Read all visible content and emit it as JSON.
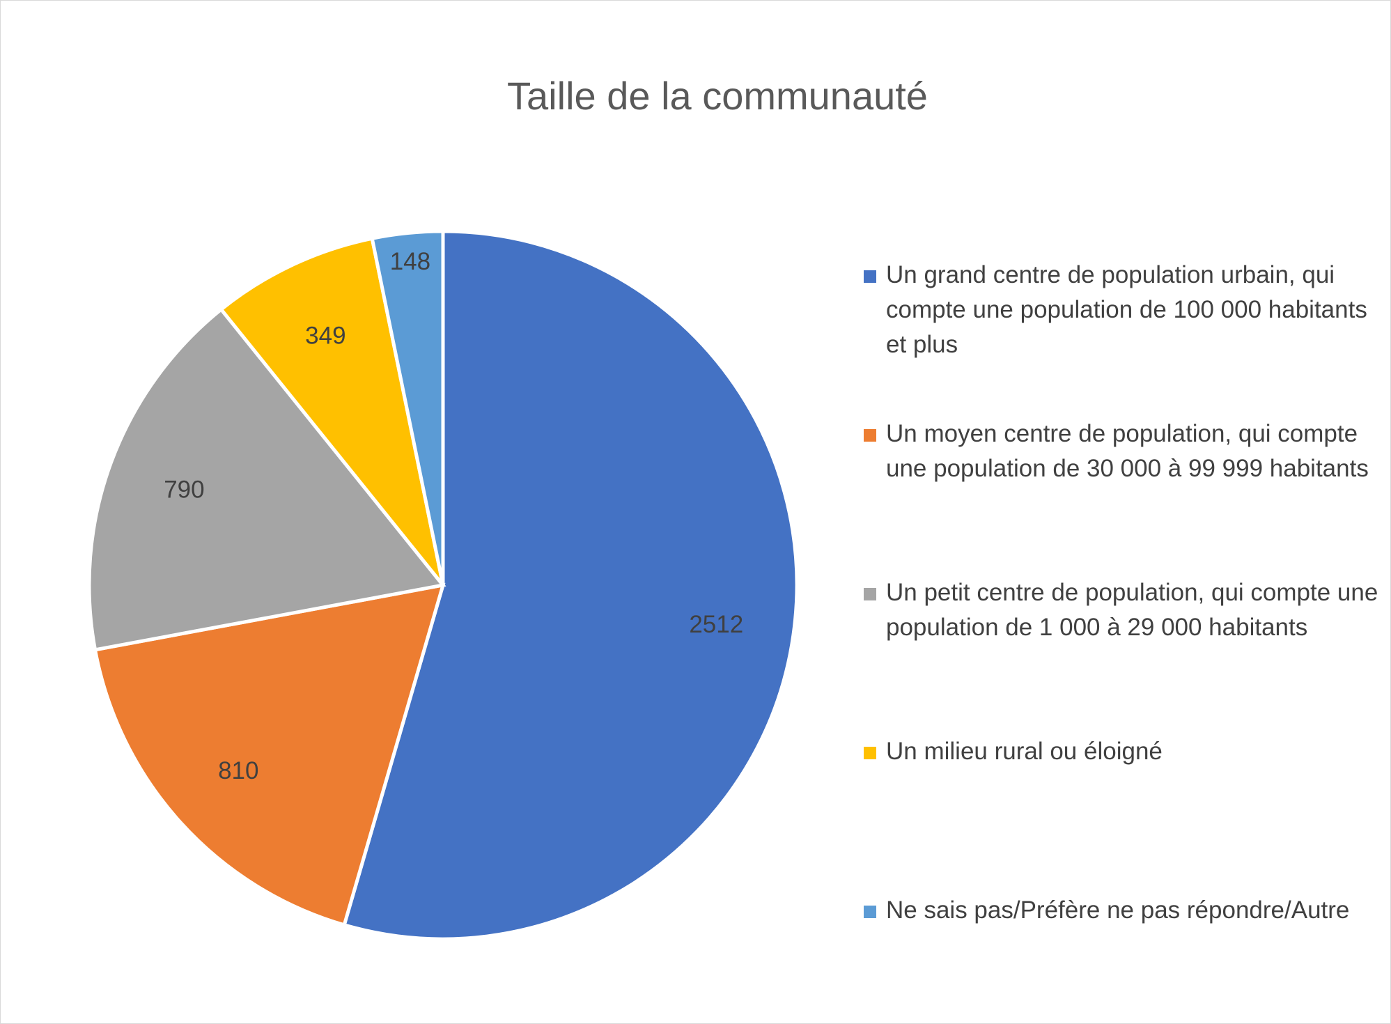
{
  "chart_data": {
    "type": "pie",
    "title": "Taille de la communauté",
    "categories": [
      "Un grand centre de population urbain, qui compte une population de 100 000 habitants et plus",
      "Un moyen centre de population, qui compte une population de 30 000 à 99 999 habitants",
      "Un petit centre de population, qui compte une population de 1 000 à 29 000 habitants",
      "Un milieu rural ou éloigné",
      "Ne sais pas/Préfère ne pas répondre/Autre"
    ],
    "values": [
      2512,
      810,
      790,
      349,
      148
    ],
    "colors": [
      "#4472C4",
      "#ED7D31",
      "#A5A5A5",
      "#FFC000",
      "#5B9BD5"
    ],
    "legend_position": "right",
    "data_labels": true
  }
}
